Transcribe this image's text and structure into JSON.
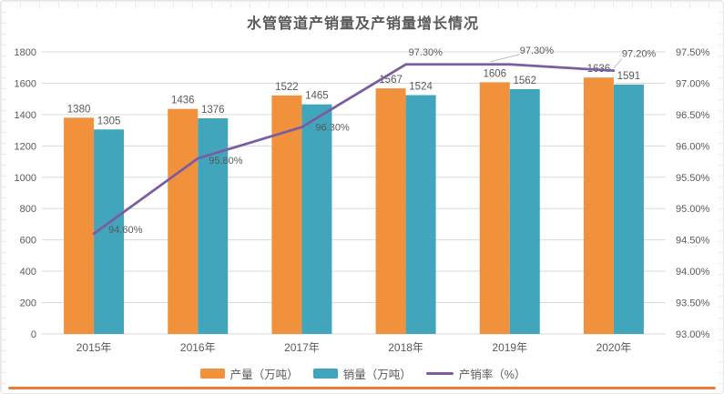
{
  "title": "水管管道产销量及产销量增长情况",
  "accent_rule_color": "#ED7D31",
  "chart_data": {
    "type": "combo-bar-line",
    "title": "水管管道产销量及产销量增长情况",
    "categories": [
      "2015年",
      "2016年",
      "2017年",
      "2018年",
      "2019年",
      "2020年"
    ],
    "series": [
      {
        "name": "产量（万吨）",
        "type": "bar",
        "axis": "left",
        "color": "#F2913C",
        "values": [
          1380,
          1436,
          1522,
          1567,
          1606,
          1636
        ],
        "labels": [
          "1380",
          "1436",
          "1522",
          "1567",
          "1606",
          "1636"
        ]
      },
      {
        "name": "销量（万吨）",
        "type": "bar",
        "axis": "left",
        "color": "#41A5BC",
        "values": [
          1305,
          1376,
          1465,
          1524,
          1562,
          1591
        ],
        "labels": [
          "1305",
          "1376",
          "1465",
          "1524",
          "1562",
          "1591"
        ]
      },
      {
        "name": "产销率（%）",
        "type": "line",
        "axis": "right",
        "color": "#7A5CA0",
        "values": [
          94.6,
          95.8,
          96.3,
          97.3,
          97.3,
          97.2
        ],
        "labels": [
          "94.60%",
          "95.80%",
          "96.30%",
          "97.30%",
          "97.30%",
          "97.20%"
        ]
      }
    ],
    "left_axis": {
      "min": 0,
      "max": 1800,
      "step": 200,
      "ticks": [
        "1800",
        "1600",
        "1400",
        "1200",
        "1000",
        "800",
        "600",
        "400",
        "200",
        "0"
      ]
    },
    "right_axis": {
      "min": 93,
      "max": 97.5,
      "step": 0.5,
      "ticks": [
        "97.50%",
        "97.00%",
        "96.50%",
        "96.00%",
        "95.50%",
        "95.00%",
        "94.50%",
        "94.00%",
        "93.50%",
        "93.00%"
      ]
    },
    "grid": true,
    "legend_position": "bottom",
    "gridline_color": "#D9D9D9",
    "text_color": "#595959",
    "leader_color": "#BFBFBF"
  }
}
